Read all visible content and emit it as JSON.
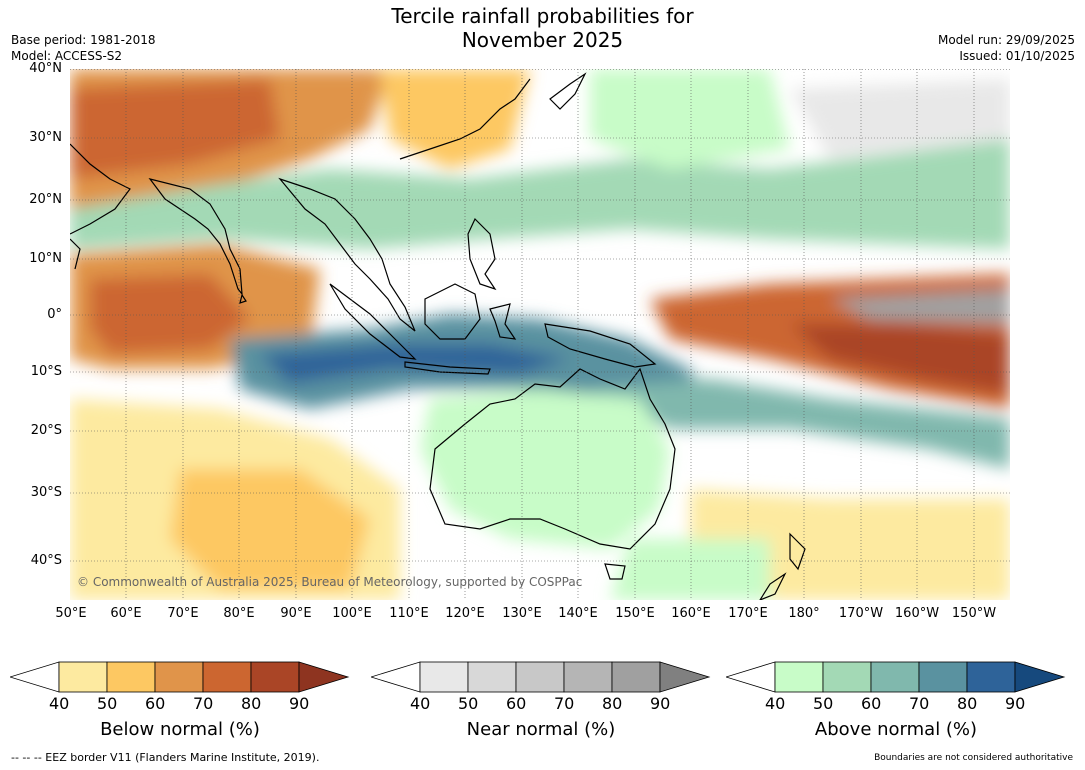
{
  "title_line1": "Tercile rainfall probabilities for",
  "title_line2": "November 2025",
  "base_period": "Base period: 1981-2018",
  "model": "Model: ACCESS-S2",
  "model_run": "Model run: 29/09/2025",
  "issued": "Issued: 01/10/2025",
  "copyright": "© Commonwealth of Australia 2025, Bureau of Meteorology, supported by COSPPac",
  "lat_labels": [
    "40°N",
    "30°N",
    "20°N",
    "10°N",
    "0°",
    "10°S",
    "20°S",
    "30°S",
    "40°S"
  ],
  "lon_labels": [
    "50°E",
    "60°E",
    "70°E",
    "80°E",
    "90°E",
    "100°E",
    "110°E",
    "120°E",
    "130°E",
    "140°E",
    "150°E",
    "160°E",
    "170°E",
    "180°",
    "170°W",
    "160°W",
    "150°W"
  ],
  "colorbars": [
    {
      "title": "Below normal (%)",
      "ticks": [
        "40",
        "50",
        "60",
        "70",
        "80",
        "90"
      ],
      "colors": [
        "#fdeaa0",
        "#fdc862",
        "#e0944a",
        "#cc6630",
        "#aa4526"
      ],
      "end_color": "#8e3420"
    },
    {
      "title": "Near normal (%)",
      "ticks": [
        "40",
        "50",
        "60",
        "70",
        "80",
        "90"
      ],
      "colors": [
        "#e8e8e8",
        "#d8d8d8",
        "#c8c8c8",
        "#b5b5b5",
        "#a0a0a0"
      ],
      "end_color": "#808080"
    },
    {
      "title": "Above normal (%)",
      "ticks": [
        "40",
        "50",
        "60",
        "70",
        "80",
        "90"
      ],
      "colors": [
        "#c8fcc8",
        "#a3d9b5",
        "#80b8ad",
        "#5a92a0",
        "#2e6399"
      ],
      "end_color": "#16497d"
    }
  ],
  "eez_note": "--  --  -- EEZ border V11 (Flanders Marine Institute, 2019).",
  "authority_note": "Boundaries are not considered authoritative"
}
